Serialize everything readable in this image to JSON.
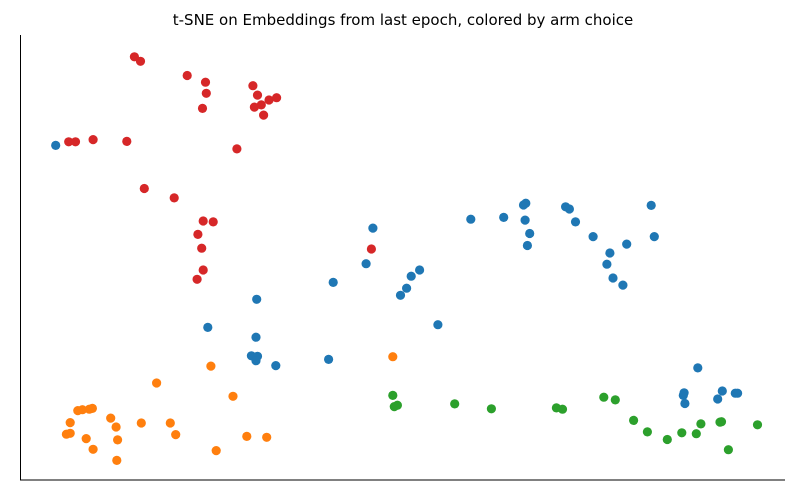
{
  "chart_data": {
    "type": "scatter",
    "title": "t-SNE on Embeddings from last epoch, colored by arm choice",
    "xlabel": "",
    "ylabel": "",
    "xlim": [
      0,
      100
    ],
    "ylim": [
      0,
      100
    ],
    "show_ticks": false,
    "grid": false,
    "legend": "none",
    "spines": [
      "left",
      "bottom"
    ],
    "series": [
      {
        "color": "#1f77b4",
        "points": [
          [
            4.6,
            75.2
          ],
          [
            58.9,
            58.6
          ],
          [
            65.8,
            61.8
          ],
          [
            66.1,
            62.2
          ],
          [
            63.2,
            59.0
          ],
          [
            71.3,
            61.4
          ],
          [
            71.8,
            60.9
          ],
          [
            66.0,
            58.4
          ],
          [
            72.6,
            58.0
          ],
          [
            66.6,
            55.4
          ],
          [
            74.9,
            54.7
          ],
          [
            66.3,
            52.7
          ],
          [
            82.5,
            61.7
          ],
          [
            82.9,
            54.7
          ],
          [
            79.3,
            53.0
          ],
          [
            77.1,
            51.0
          ],
          [
            76.7,
            48.5
          ],
          [
            77.5,
            45.4
          ],
          [
            78.8,
            43.8
          ],
          [
            46.1,
            56.6
          ],
          [
            51.1,
            45.8
          ],
          [
            50.5,
            43.1
          ],
          [
            52.2,
            47.2
          ],
          [
            49.7,
            41.5
          ],
          [
            45.2,
            48.6
          ],
          [
            40.9,
            44.4
          ],
          [
            54.6,
            34.9
          ],
          [
            24.5,
            34.3
          ],
          [
            30.9,
            40.6
          ],
          [
            30.8,
            32.1
          ],
          [
            30.2,
            27.9
          ],
          [
            31.0,
            27.8
          ],
          [
            30.8,
            26.8
          ],
          [
            40.3,
            27.1
          ],
          [
            33.4,
            25.7
          ],
          [
            88.6,
            25.2
          ],
          [
            86.7,
            19.0
          ],
          [
            86.8,
            19.6
          ],
          [
            91.8,
            20.0
          ],
          [
            93.5,
            19.5
          ],
          [
            93.8,
            19.5
          ],
          [
            86.9,
            17.2
          ],
          [
            91.2,
            18.2
          ]
        ]
      },
      {
        "color": "#ff7f0e",
        "points": [
          [
            48.7,
            27.7
          ],
          [
            24.9,
            25.6
          ],
          [
            17.8,
            21.8
          ],
          [
            27.8,
            18.8
          ],
          [
            8.1,
            15.8
          ],
          [
            9.0,
            15.9
          ],
          [
            7.5,
            15.6
          ],
          [
            9.4,
            16.1
          ],
          [
            11.8,
            13.9
          ],
          [
            6.5,
            12.9
          ],
          [
            15.8,
            12.8
          ],
          [
            19.6,
            12.8
          ],
          [
            12.5,
            11.9
          ],
          [
            6.0,
            10.3
          ],
          [
            6.5,
            10.5
          ],
          [
            8.6,
            9.3
          ],
          [
            12.7,
            9.0
          ],
          [
            20.3,
            10.2
          ],
          [
            29.6,
            9.8
          ],
          [
            32.2,
            9.6
          ],
          [
            9.5,
            6.9
          ],
          [
            25.6,
            6.6
          ],
          [
            12.6,
            4.4
          ]
        ]
      },
      {
        "color": "#2ca02c",
        "points": [
          [
            48.7,
            19.0
          ],
          [
            49.3,
            16.8
          ],
          [
            48.9,
            16.5
          ],
          [
            56.8,
            17.1
          ],
          [
            61.6,
            16.0
          ],
          [
            70.1,
            16.2
          ],
          [
            70.9,
            15.9
          ],
          [
            76.3,
            18.6
          ],
          [
            77.8,
            18.0
          ],
          [
            80.2,
            13.4
          ],
          [
            82.0,
            10.8
          ],
          [
            84.6,
            9.1
          ],
          [
            86.5,
            10.6
          ],
          [
            88.4,
            10.4
          ],
          [
            89.0,
            12.6
          ],
          [
            91.5,
            13.0
          ],
          [
            91.7,
            13.1
          ],
          [
            96.4,
            12.4
          ],
          [
            92.6,
            6.8
          ]
        ]
      },
      {
        "color": "#d62728",
        "points": [
          [
            14.9,
            95.1
          ],
          [
            15.7,
            94.1
          ],
          [
            21.8,
            90.9
          ],
          [
            24.2,
            89.4
          ],
          [
            30.4,
            88.6
          ],
          [
            24.3,
            86.9
          ],
          [
            31.0,
            86.5
          ],
          [
            32.5,
            85.4
          ],
          [
            33.5,
            85.9
          ],
          [
            31.5,
            84.3
          ],
          [
            30.6,
            83.8
          ],
          [
            23.8,
            83.5
          ],
          [
            31.8,
            82.0
          ],
          [
            6.3,
            76.0
          ],
          [
            7.2,
            76.0
          ],
          [
            9.5,
            76.5
          ],
          [
            13.9,
            76.1
          ],
          [
            28.3,
            74.4
          ],
          [
            16.2,
            65.5
          ],
          [
            20.1,
            63.4
          ],
          [
            23.9,
            58.2
          ],
          [
            25.2,
            58.0
          ],
          [
            23.2,
            55.2
          ],
          [
            23.7,
            52.1
          ],
          [
            23.9,
            47.2
          ],
          [
            23.1,
            45.1
          ],
          [
            45.9,
            51.9
          ]
        ]
      }
    ]
  }
}
